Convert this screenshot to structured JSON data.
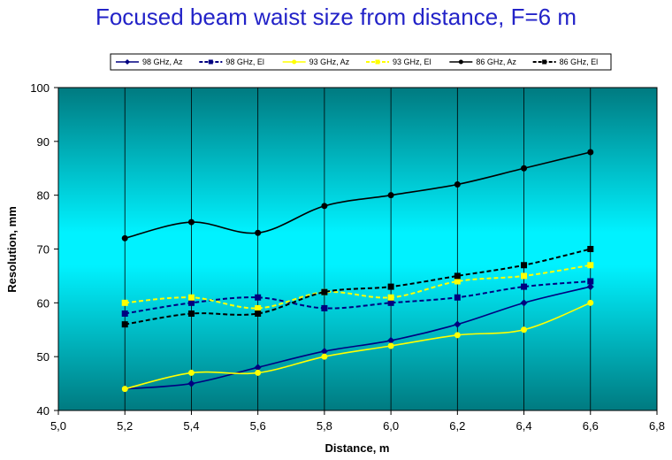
{
  "chart_data": {
    "type": "line",
    "title": "Focused beam waist size from distance, F=6 m",
    "xlabel": "Distance, m",
    "ylabel": "Resolution, mm",
    "xlim": [
      5.0,
      6.8
    ],
    "ylim": [
      40,
      100
    ],
    "x_ticks": [
      "5,0",
      "5,2",
      "5,4",
      "5,6",
      "5,8",
      "6,0",
      "6,2",
      "6,4",
      "6,6",
      "6,8"
    ],
    "y_ticks": [
      "40",
      "50",
      "60",
      "70",
      "80",
      "90",
      "100"
    ],
    "x": [
      5.2,
      5.4,
      5.6,
      5.8,
      6.0,
      6.2,
      6.4,
      6.6
    ],
    "grid": "vertical",
    "legend_position": "top",
    "series": [
      {
        "name": "98 GHz, Az",
        "values": [
          44,
          45,
          48,
          51,
          53,
          56,
          60,
          63
        ],
        "color": "#000080",
        "dash": false,
        "marker": "diamond"
      },
      {
        "name": "98 GHz, El",
        "values": [
          58,
          60,
          61,
          59,
          60,
          61,
          63,
          64
        ],
        "color": "#000080",
        "dash": true,
        "marker": "square"
      },
      {
        "name": "93 GHz, Az",
        "values": [
          44,
          47,
          47,
          50,
          52,
          54,
          55,
          60
        ],
        "color": "#ffff00",
        "dash": false,
        "marker": "circle"
      },
      {
        "name": "93 GHz, El",
        "values": [
          60,
          61,
          59,
          62,
          61,
          64,
          65,
          67
        ],
        "color": "#ffff00",
        "dash": true,
        "marker": "square"
      },
      {
        "name": "86 GHz, Az",
        "values": [
          72,
          75,
          73,
          78,
          80,
          82,
          85,
          88
        ],
        "color": "#000000",
        "dash": false,
        "marker": "circle"
      },
      {
        "name": "86 GHz, El",
        "values": [
          56,
          58,
          58,
          62,
          63,
          65,
          67,
          70
        ],
        "color": "#000000",
        "dash": true,
        "marker": "square"
      }
    ]
  },
  "colors": {
    "title": "#2323c8",
    "plot_gradient_edge": "#007a80",
    "plot_gradient_center": "#00f0ff"
  }
}
